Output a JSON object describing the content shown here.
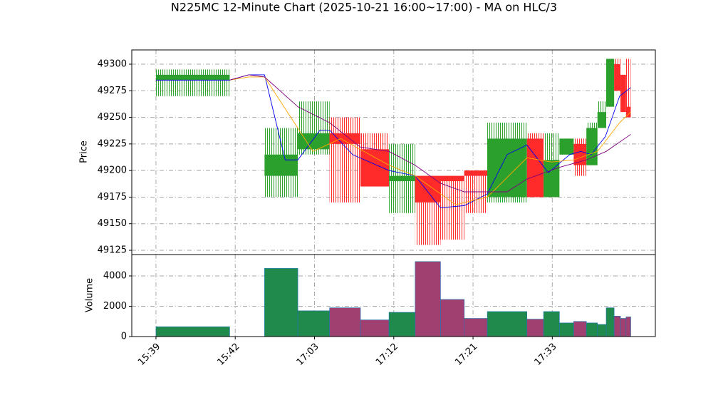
{
  "chart_data": {
    "type": "candlestick",
    "title": "N225MC 12-Minute Chart (2025-10-21 16:00~17:00) - MA on HLC/3",
    "ylabel": "Price",
    "y2label": "Volume",
    "up_color": "#2ca02c",
    "down_color": "#ff2a2a",
    "volume_up_color": "#1f8a4c",
    "volume_down_color": "#a04070",
    "grid": true,
    "xlim": [
      -3.05,
      63
    ],
    "xticks": [
      {
        "value": 0,
        "label": "15:39"
      },
      {
        "value": 10,
        "label": "15:42"
      },
      {
        "value": 20,
        "label": "17:03"
      },
      {
        "value": 30,
        "label": "17:12"
      },
      {
        "value": 40,
        "label": "17:21"
      },
      {
        "value": 50,
        "label": "17:33"
      }
    ],
    "ylim": [
      49121,
      49313.4
    ],
    "yticks": [
      49125,
      49150,
      49175,
      49200,
      49225,
      49250,
      49275,
      49300
    ],
    "y2lim": [
      0,
      5412
    ],
    "y2ticks": [
      0,
      2000,
      4000
    ],
    "x_start": [
      0,
      13.7,
      17.9,
      21.9,
      25.8,
      29.4,
      32.7,
      35.9,
      38.9,
      41.8,
      46.8,
      48.9,
      50.9,
      52.7,
      54.3,
      55.7,
      56.8,
      57.8,
      58.6,
      59.3
    ],
    "x_end": [
      9.3,
      17.9,
      21.9,
      25.8,
      29.4,
      32.7,
      35.9,
      38.9,
      41.8,
      46.8,
      48.9,
      50.9,
      52.7,
      54.3,
      55.7,
      56.8,
      57.8,
      58.6,
      59.3,
      59.9
    ],
    "open": [
      49285,
      49195,
      49220,
      49235,
      49220,
      49190,
      49195,
      49195,
      49200,
      49175,
      49230,
      49175,
      49215,
      49225,
      49205,
      49240,
      49260,
      49300,
      49290,
      49260
    ],
    "high": [
      49295,
      49240,
      49265,
      49250,
      49235,
      49225,
      49195,
      49195,
      49200,
      49245,
      49235,
      49235,
      49230,
      49230,
      49245,
      49265,
      49305,
      49305,
      49290,
      49305
    ],
    "low": [
      49270,
      49175,
      49215,
      49170,
      49185,
      49160,
      49130,
      49135,
      49160,
      49170,
      49175,
      49175,
      49215,
      49195,
      49205,
      49240,
      49260,
      49275,
      49255,
      49250
    ],
    "close": [
      49290,
      49215,
      49235,
      49225,
      49185,
      49195,
      49170,
      49190,
      49195,
      49230,
      49175,
      49210,
      49230,
      49205,
      49240,
      49255,
      49305,
      49275,
      49255,
      49250
    ],
    "volume": [
      650,
      4500,
      1700,
      1900,
      1100,
      1600,
      4950,
      2450,
      1200,
      1650,
      1150,
      1650,
      900,
      1000,
      900,
      800,
      1900,
      1350,
      1200,
      1300
    ],
    "series": [
      {
        "color": "#0000ee",
        "x": [
          0,
          9.3,
          11.7,
          13.7,
          16.3,
          17.9,
          20.7,
          21.9,
          24.8,
          29.4,
          32.7,
          35.9,
          38.9,
          41.8,
          44.3,
          46.8,
          49.5,
          52.2,
          53.6,
          54.9,
          56.7,
          58.5,
          59.9
        ],
        "values": [
          49285,
          49285,
          49290,
          49290,
          49210,
          49210,
          49238,
          49238,
          49215,
          49200,
          49195,
          49165,
          49167,
          49178,
          49215,
          49224,
          49198,
          49215,
          49218,
          49215,
          49232,
          49270,
          49278
        ]
      },
      {
        "color": "#ffa500",
        "x": [
          9.3,
          11.7,
          13.7,
          19.8,
          23.3,
          29.4,
          32.7,
          37.8,
          41.8,
          46.8,
          49.9,
          52.7,
          55.7,
          58.5,
          59.9
        ],
        "values": [
          49285,
          49288,
          49288,
          49218,
          49230,
          49205,
          49195,
          49168,
          49175,
          49212,
          49208,
          49210,
          49218,
          49245,
          49255
        ]
      },
      {
        "color": "#800080",
        "x": [
          9.3,
          11.7,
          13.7,
          17.9,
          21.9,
          25.8,
          29.4,
          32.7,
          35.9,
          38.9,
          44.3,
          46.8,
          50.9,
          54.3,
          56.8,
          59.9
        ],
        "values": [
          49285,
          49290,
          49288,
          49260,
          49245,
          49222,
          49218,
          49205,
          49188,
          49180,
          49180,
          49192,
          49203,
          49210,
          49218,
          49234
        ]
      }
    ]
  }
}
